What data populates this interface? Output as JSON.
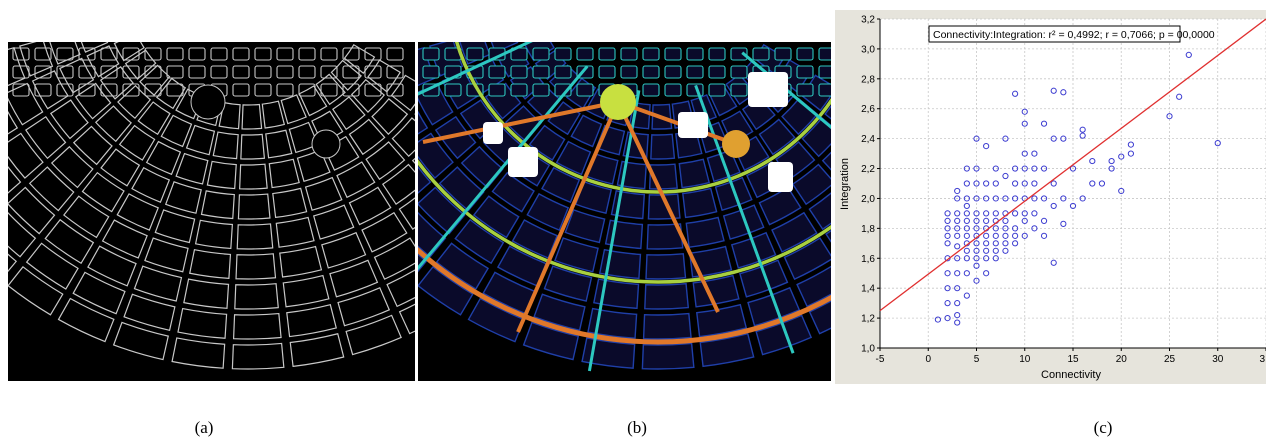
{
  "captions": [
    "(a)",
    "(b)",
    "(c)"
  ],
  "panels": {
    "a": {
      "icon": "street-network-outline-map",
      "colors": {
        "background": "#000000",
        "lines": "#c8c8c8"
      }
    },
    "b": {
      "icon": "integration-heat-map",
      "colors": {
        "background": "#000000",
        "low": "#1f3fa8",
        "mid": "#2dc8c0",
        "high": "#e0782a"
      }
    }
  },
  "chart_data": {
    "type": "scatter",
    "title": "",
    "annotation": "Connectivity:Integration:  r² = 0,4992;  r = 0,7066; p = 00,0000",
    "xlabel": "Connectivity",
    "ylabel": "Integration",
    "xlim": [
      -5,
      35
    ],
    "ylim": [
      1.0,
      3.2
    ],
    "x_ticks": [
      "-5",
      "0",
      "5",
      "10",
      "15",
      "20",
      "25",
      "30",
      "3"
    ],
    "y_ticks": [
      "1,0",
      "1,2",
      "1,4",
      "1,6",
      "1,8",
      "2,0",
      "2,2",
      "2,4",
      "2,6",
      "2,8",
      "3,0",
      "3,2"
    ],
    "grid": true,
    "colors": {
      "points": "#3c3cd0",
      "fit_line": "#e03030",
      "plot_bg": "#ffffff",
      "frame_bg": "#e6e4dc"
    },
    "fit_line": {
      "x": [
        -5,
        35
      ],
      "y": [
        1.25,
        3.2
      ]
    },
    "points": {
      "x": [
        1,
        2,
        2,
        2,
        2,
        2,
        2,
        2,
        2,
        2,
        2,
        3,
        3,
        3,
        3,
        3,
        3,
        3,
        3,
        3,
        3,
        3,
        3,
        3,
        4,
        4,
        4,
        4,
        4,
        4,
        4,
        4,
        4,
        4,
        4,
        4,
        4,
        5,
        5,
        5,
        5,
        5,
        5,
        5,
        5,
        5,
        5,
        5,
        5,
        5,
        6,
        6,
        6,
        6,
        6,
        6,
        6,
        6,
        6,
        6,
        6,
        7,
        7,
        7,
        7,
        7,
        7,
        7,
        7,
        7,
        7,
        8,
        8,
        8,
        8,
        8,
        8,
        8,
        8,
        8,
        9,
        9,
        9,
        9,
        9,
        9,
        9,
        9,
        10,
        10,
        10,
        10,
        10,
        10,
        10,
        10,
        10,
        11,
        11,
        11,
        11,
        11,
        11,
        12,
        12,
        12,
        12,
        12,
        13,
        13,
        13,
        13,
        13,
        14,
        14,
        14,
        14,
        15,
        15,
        16,
        16,
        16,
        17,
        17,
        18,
        19,
        19,
        20,
        20,
        21,
        21,
        25,
        26,
        27,
        30
      ],
      "y": [
        1.19,
        1.2,
        1.3,
        1.4,
        1.5,
        1.6,
        1.7,
        1.75,
        1.8,
        1.85,
        1.9,
        1.17,
        1.22,
        1.3,
        1.4,
        1.5,
        1.6,
        1.68,
        1.75,
        1.8,
        1.85,
        1.9,
        2.0,
        2.05,
        1.35,
        1.5,
        1.6,
        1.65,
        1.7,
        1.75,
        1.8,
        1.85,
        1.9,
        1.95,
        2.0,
        2.1,
        2.2,
        1.45,
        1.55,
        1.6,
        1.65,
        1.7,
        1.75,
        1.8,
        1.85,
        1.9,
        2.0,
        2.1,
        2.2,
        2.4,
        1.5,
        1.6,
        1.65,
        1.7,
        1.75,
        1.8,
        1.85,
        1.9,
        2.0,
        2.1,
        2.35,
        1.6,
        1.65,
        1.7,
        1.75,
        1.8,
        1.85,
        1.9,
        2.0,
        2.1,
        2.2,
        1.65,
        1.7,
        1.75,
        1.8,
        1.85,
        1.9,
        2.0,
        2.15,
        2.4,
        1.7,
        1.75,
        1.8,
        1.9,
        2.0,
        2.1,
        2.2,
        2.7,
        1.75,
        1.85,
        1.9,
        2.0,
        2.1,
        2.2,
        2.3,
        2.5,
        2.58,
        1.8,
        1.9,
        2.0,
        2.1,
        2.2,
        2.3,
        1.75,
        1.85,
        2.0,
        2.2,
        2.5,
        1.57,
        1.95,
        2.1,
        2.4,
        2.72,
        1.83,
        2.0,
        2.4,
        2.71,
        1.95,
        2.2,
        2.0,
        2.42,
        2.46,
        2.1,
        2.25,
        2.1,
        2.2,
        2.25,
        2.05,
        2.28,
        2.3,
        2.36,
        2.55,
        2.68,
        2.96,
        2.37
      ]
    }
  }
}
